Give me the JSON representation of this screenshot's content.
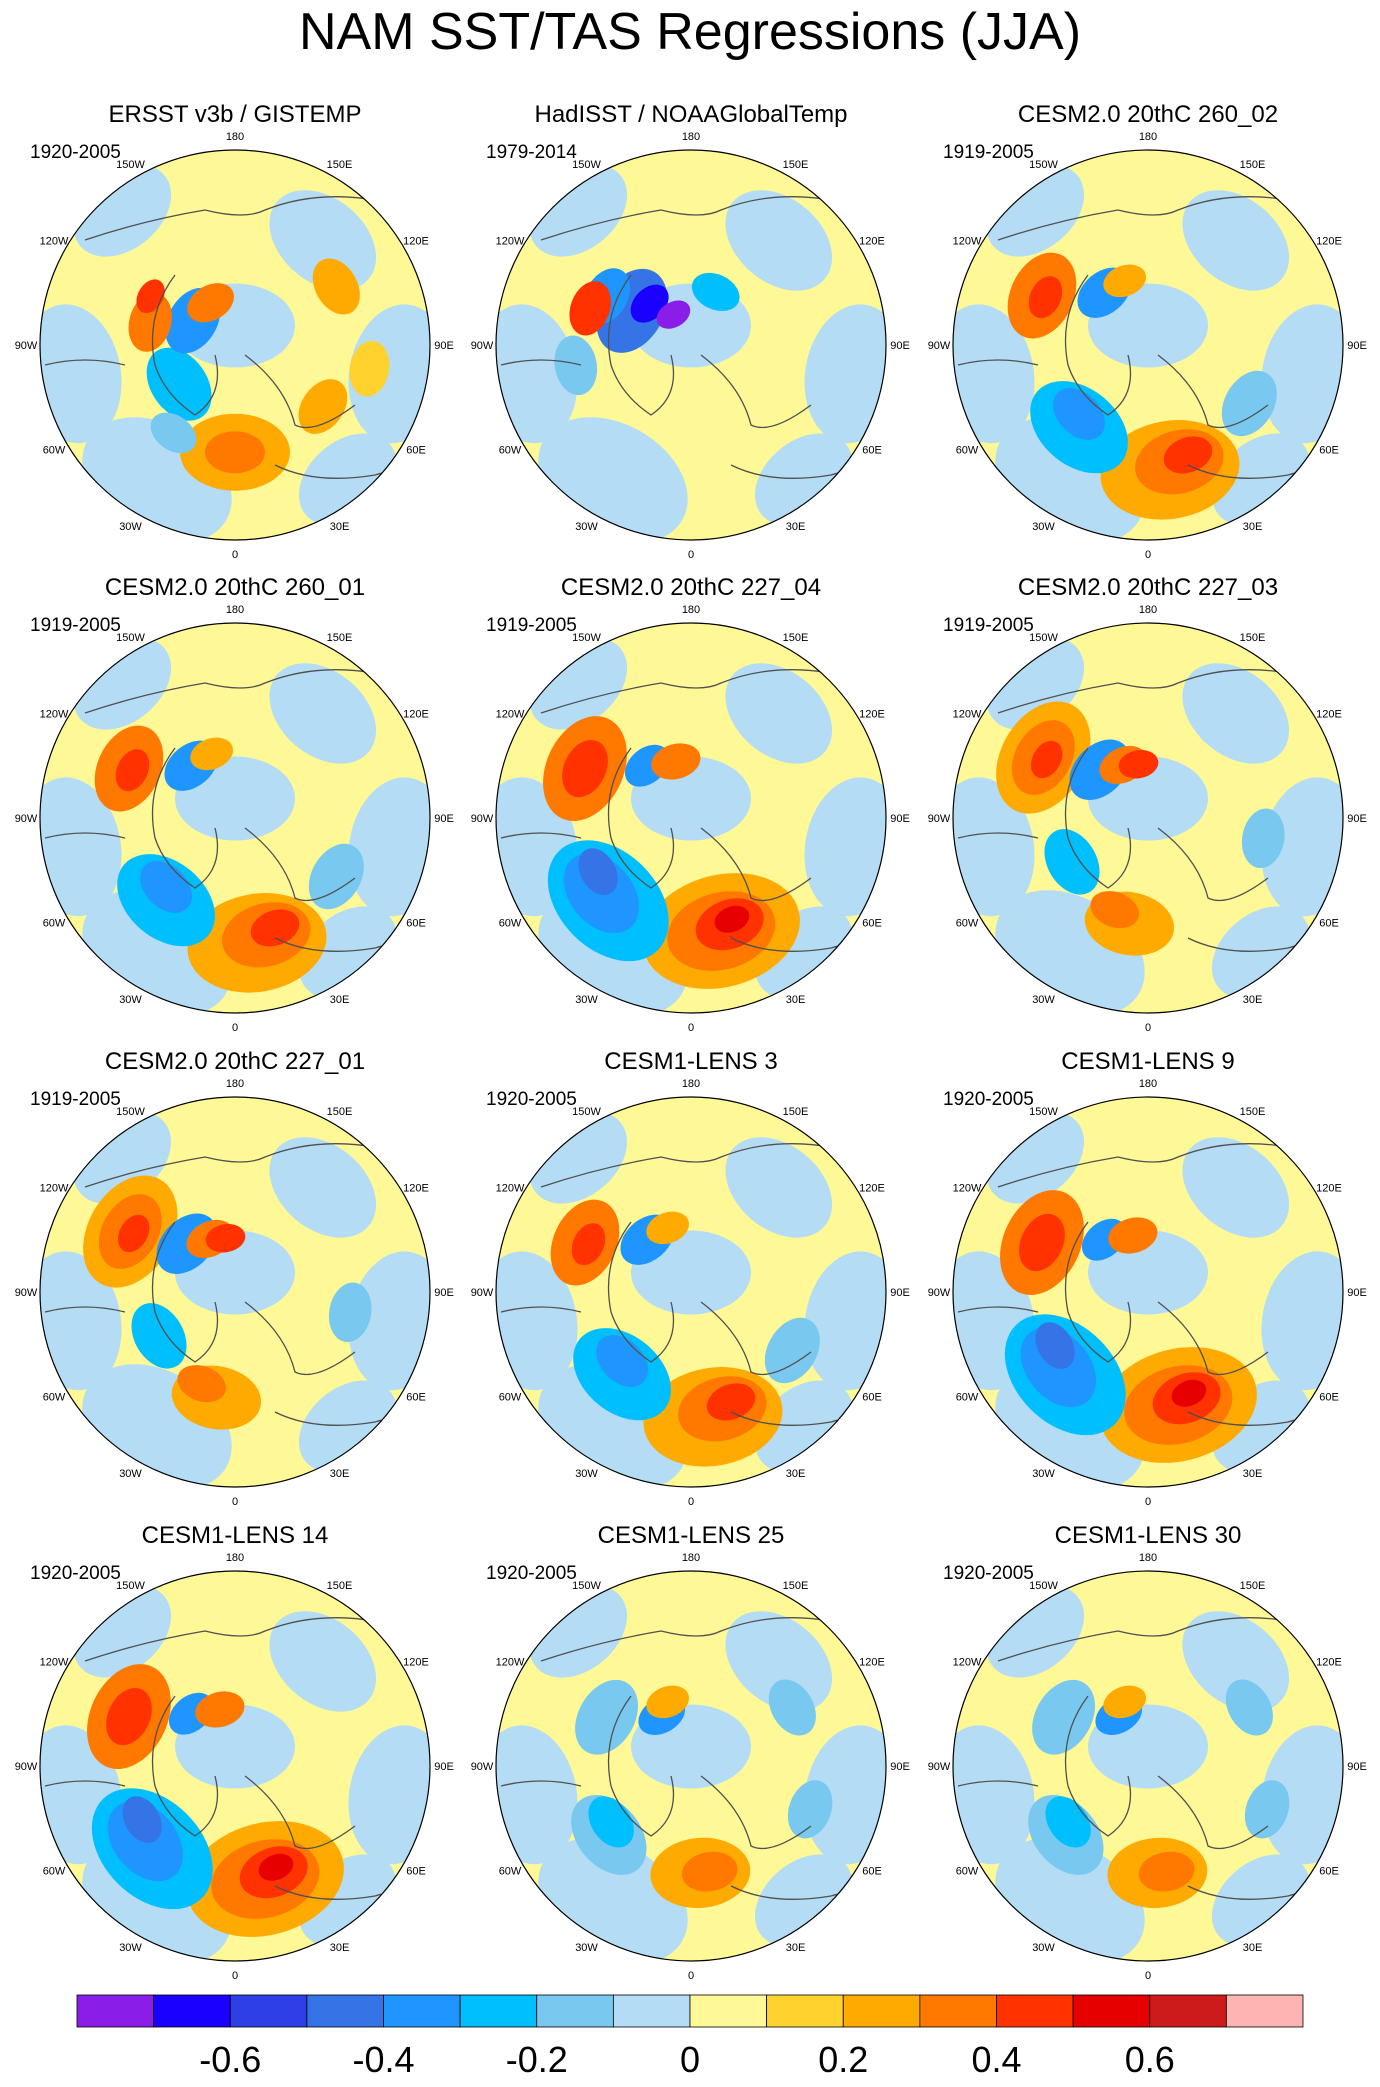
{
  "title": "NAM SST/TAS Regressions (JJA)",
  "panels": [
    {
      "title": "ERSST v3b / GISTEMP",
      "years": "1920-2005",
      "pattern": "obs1"
    },
    {
      "title": "HadISST / NOAAGlobalTemp",
      "years": "1979-2014",
      "pattern": "obs2"
    },
    {
      "title": "CESM2.0 20thC 260_02",
      "years": "1919-2005",
      "pattern": "pac"
    },
    {
      "title": "CESM2.0 20thC 260_01",
      "years": "1919-2005",
      "pattern": "pac"
    },
    {
      "title": "CESM2.0 20thC 227_04",
      "years": "1919-2005",
      "pattern": "pacstrong"
    },
    {
      "title": "CESM2.0 20thC 227_03",
      "years": "1919-2005",
      "pattern": "atl"
    },
    {
      "title": "CESM2.0 20thC 227_01",
      "years": "1919-2005",
      "pattern": "atl"
    },
    {
      "title": "CESM1-LENS 3",
      "years": "1920-2005",
      "pattern": "pac"
    },
    {
      "title": "CESM1-LENS 9",
      "years": "1920-2005",
      "pattern": "pacstrong"
    },
    {
      "title": "CESM1-LENS 14",
      "years": "1920-2005",
      "pattern": "pacstrong"
    },
    {
      "title": "CESM1-LENS 25",
      "years": "1920-2005",
      "pattern": "weak"
    },
    {
      "title": "CESM1-LENS 30",
      "years": "1920-2005",
      "pattern": "weak"
    }
  ],
  "lon_labels": [
    "180",
    "150E",
    "120E",
    "90E",
    "60E",
    "30E",
    "0",
    "30W",
    "60W",
    "90W",
    "120W",
    "150W"
  ],
  "colorbar": {
    "colors": [
      "#8a1ee8",
      "#1a00ff",
      "#2d40e8",
      "#3574e6",
      "#1f96ff",
      "#00bfff",
      "#78c8f0",
      "#b4dcf5",
      "#fff896",
      "#ffd22d",
      "#ffaa00",
      "#ff7800",
      "#ff3200",
      "#e60000",
      "#cd1a1a",
      "#ffb4b4"
    ],
    "labels": [
      "-0.6",
      "-0.4",
      "-0.2",
      "0",
      "0.2",
      "0.4",
      "0.6"
    ]
  },
  "legend": {
    "ocean_mask": "#ffffff",
    "coastline": "#505050"
  }
}
